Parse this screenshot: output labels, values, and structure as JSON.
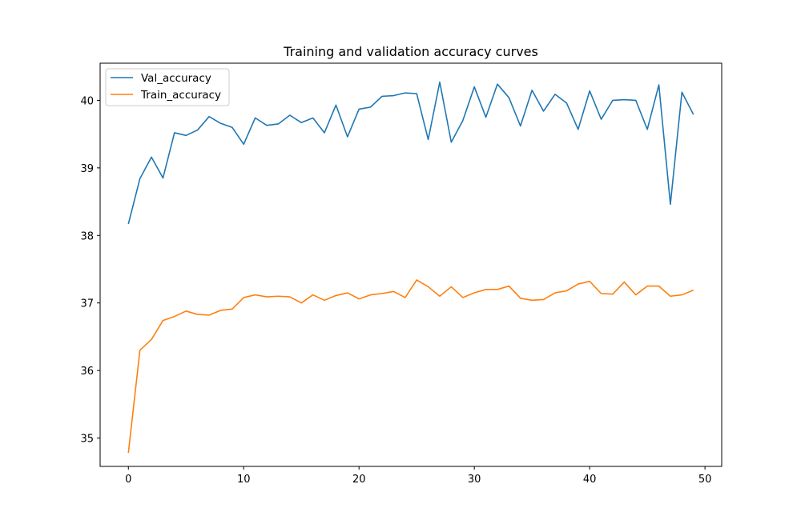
{
  "chart_data": {
    "type": "line",
    "title": "Training and validation accuracy curves",
    "xlabel": "",
    "ylabel": "",
    "xlim": [
      -2.45,
      51.45
    ],
    "ylim": [
      34.58,
      40.55
    ],
    "xticks": [
      0,
      10,
      20,
      30,
      40,
      50
    ],
    "yticks": [
      35,
      36,
      37,
      38,
      39,
      40
    ],
    "legend_position": "upper-left",
    "grid": false,
    "x": [
      0,
      1,
      2,
      3,
      4,
      5,
      6,
      7,
      8,
      9,
      10,
      11,
      12,
      13,
      14,
      15,
      16,
      17,
      18,
      19,
      20,
      21,
      22,
      23,
      24,
      25,
      26,
      27,
      28,
      29,
      30,
      31,
      32,
      33,
      34,
      35,
      36,
      37,
      38,
      39,
      40,
      41,
      42,
      43,
      44,
      45,
      46,
      47,
      48,
      49
    ],
    "series": [
      {
        "name": "Val_accuracy",
        "color": "#1f77b4",
        "values": [
          38.17,
          38.84,
          39.16,
          38.85,
          39.52,
          39.48,
          39.56,
          39.76,
          39.66,
          39.6,
          39.35,
          39.74,
          39.63,
          39.65,
          39.78,
          39.67,
          39.74,
          39.52,
          39.93,
          39.46,
          39.87,
          39.9,
          40.06,
          40.07,
          40.11,
          40.1,
          39.42,
          40.27,
          39.38,
          39.7,
          40.2,
          39.75,
          40.24,
          40.04,
          39.62,
          40.15,
          39.84,
          40.09,
          39.96,
          39.57,
          40.14,
          39.72,
          40.0,
          40.01,
          40.0,
          39.57,
          40.23,
          38.46,
          40.12,
          39.79
        ]
      },
      {
        "name": "Train_accuracy",
        "color": "#ff7f0e",
        "values": [
          34.78,
          36.3,
          36.46,
          36.74,
          36.8,
          36.88,
          36.83,
          36.82,
          36.89,
          36.91,
          37.08,
          37.12,
          37.09,
          37.1,
          37.09,
          37.0,
          37.12,
          37.04,
          37.11,
          37.15,
          37.06,
          37.12,
          37.14,
          37.17,
          37.08,
          37.34,
          37.24,
          37.1,
          37.24,
          37.08,
          37.15,
          37.2,
          37.2,
          37.25,
          37.07,
          37.04,
          37.05,
          37.15,
          37.18,
          37.28,
          37.32,
          37.14,
          37.13,
          37.31,
          37.12,
          37.25,
          37.25,
          37.1,
          37.12,
          37.19
        ]
      }
    ]
  }
}
